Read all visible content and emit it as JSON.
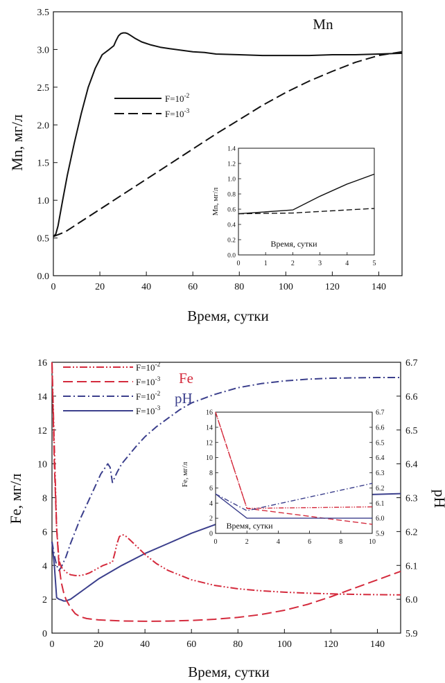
{
  "chart_data": [
    {
      "type": "line",
      "title": "Mn",
      "xlabel": "Время, сутки",
      "ylabel": "Mn, мг/л",
      "xlim": [
        0,
        150
      ],
      "ylim": [
        0,
        3.5
      ],
      "xticks": [
        0,
        20,
        40,
        60,
        80,
        100,
        120,
        140
      ],
      "yticks": [
        0.0,
        0.5,
        1.0,
        1.5,
        2.0,
        2.5,
        3.0,
        3.5
      ],
      "legend_position": "upper-left",
      "colors": {
        "line": "#111111"
      },
      "series": [
        {
          "name": "F=10⁻²",
          "style": "solid",
          "x": [
            0,
            1,
            2,
            4,
            6,
            9,
            12,
            15,
            18,
            21,
            24,
            26,
            27,
            28,
            29,
            30,
            31,
            32,
            33,
            35,
            38,
            42,
            46,
            50,
            55,
            60,
            65,
            70,
            80,
            90,
            100,
            110,
            120,
            130,
            140,
            150
          ],
          "y": [
            0.52,
            0.55,
            0.66,
            1.0,
            1.33,
            1.76,
            2.15,
            2.5,
            2.75,
            2.93,
            3.0,
            3.05,
            3.12,
            3.18,
            3.21,
            3.22,
            3.22,
            3.21,
            3.19,
            3.15,
            3.1,
            3.06,
            3.03,
            3.01,
            2.99,
            2.97,
            2.96,
            2.94,
            2.93,
            2.92,
            2.92,
            2.92,
            2.93,
            2.93,
            2.94,
            2.95
          ]
        },
        {
          "name": "F=10⁻³",
          "style": "dashed",
          "x": [
            0,
            5,
            10,
            20,
            30,
            40,
            50,
            60,
            70,
            80,
            90,
            100,
            110,
            120,
            130,
            140,
            150
          ],
          "y": [
            0.52,
            0.58,
            0.68,
            0.88,
            1.08,
            1.28,
            1.48,
            1.68,
            1.88,
            2.07,
            2.26,
            2.43,
            2.58,
            2.71,
            2.83,
            2.92,
            2.97
          ]
        }
      ],
      "inset": {
        "xlabel": "Время, сутки",
        "ylabel": "Mn, мг/л",
        "xlim": [
          0,
          5
        ],
        "ylim": [
          0,
          1.4
        ],
        "xticks": [
          0,
          1,
          2,
          3,
          4,
          5
        ],
        "yticks": [
          0.0,
          0.2,
          0.4,
          0.6,
          0.8,
          1.0,
          1.2,
          1.4
        ],
        "series": [
          {
            "style": "solid",
            "x": [
              0,
              2,
              3,
              4,
              5
            ],
            "y": [
              0.54,
              0.59,
              0.77,
              0.93,
              1.06
            ]
          },
          {
            "style": "dashed",
            "x": [
              0,
              2,
              3,
              4,
              5
            ],
            "y": [
              0.54,
              0.55,
              0.57,
              0.59,
              0.61
            ]
          }
        ]
      }
    },
    {
      "type": "line",
      "title": "",
      "xlabel": "Время, сутки",
      "ylabel": "Fe, мг/л",
      "ylabel_right": "pH",
      "xlim": [
        0,
        150
      ],
      "ylim": [
        0,
        16
      ],
      "ylim_right": [
        5.9,
        6.7
      ],
      "xticks": [
        0,
        20,
        40,
        60,
        80,
        100,
        120,
        140
      ],
      "yticks": [
        0,
        2,
        4,
        6,
        8,
        10,
        12,
        14,
        16
      ],
      "yticks_right": [
        5.9,
        6.0,
        6.1,
        6.2,
        6.3,
        6.4,
        6.5,
        6.6,
        6.7
      ],
      "group_labels": {
        "fe": "Fe",
        "ph": "pH"
      },
      "legend_position": "upper-left",
      "colors": {
        "fe": "#d42a3c",
        "ph": "#3b3f8c",
        "axis": "#111111"
      },
      "series": [
        {
          "name": "F=10⁻²",
          "group": "fe",
          "axis": "left",
          "style": "dashdotdot",
          "x": [
            0,
            1,
            2,
            3,
            4,
            6,
            8,
            10,
            12,
            14,
            16,
            18,
            20,
            22,
            24,
            26,
            27,
            28,
            29,
            30,
            31,
            32,
            34,
            37,
            40,
            45,
            50,
            60,
            70,
            80,
            90,
            100,
            110,
            120,
            130,
            140,
            150
          ],
          "y": [
            16,
            11,
            6.2,
            4.3,
            3.9,
            3.6,
            3.45,
            3.4,
            3.4,
            3.45,
            3.55,
            3.7,
            3.85,
            4.0,
            4.1,
            4.2,
            4.7,
            5.3,
            5.7,
            5.8,
            5.8,
            5.7,
            5.45,
            5.05,
            4.65,
            4.1,
            3.7,
            3.15,
            2.82,
            2.62,
            2.5,
            2.42,
            2.36,
            2.32,
            2.29,
            2.27,
            2.26
          ]
        },
        {
          "name": "F=10⁻³",
          "group": "fe",
          "axis": "left",
          "style": "dashed",
          "x": [
            0,
            1,
            2,
            3,
            4,
            5,
            6,
            8,
            10,
            12,
            15,
            20,
            30,
            40,
            50,
            60,
            70,
            80,
            90,
            100,
            110,
            120,
            130,
            140,
            150
          ],
          "y": [
            16,
            10,
            6.2,
            4.0,
            3.0,
            2.4,
            2.0,
            1.5,
            1.15,
            0.98,
            0.86,
            0.78,
            0.72,
            0.7,
            0.71,
            0.75,
            0.82,
            0.93,
            1.1,
            1.35,
            1.7,
            2.15,
            2.65,
            3.15,
            3.65
          ]
        },
        {
          "name": "F=10⁻²",
          "group": "ph",
          "axis": "right",
          "style": "dashdot",
          "x": [
            0,
            1,
            2,
            3,
            4,
            6,
            8,
            10,
            12,
            15,
            18,
            21,
            24,
            25,
            26,
            27,
            28,
            30,
            33,
            36,
            40,
            45,
            50,
            55,
            60,
            70,
            80,
            90,
            100,
            110,
            120,
            130,
            140,
            150
          ],
          "y": [
            6.17,
            6.13,
            6.1,
            6.085,
            6.095,
            6.125,
            6.165,
            6.2,
            6.235,
            6.28,
            6.325,
            6.37,
            6.4,
            6.39,
            6.345,
            6.36,
            6.375,
            6.4,
            6.425,
            6.45,
            6.48,
            6.51,
            6.535,
            6.56,
            6.58,
            6.605,
            6.625,
            6.637,
            6.645,
            6.65,
            6.653,
            6.654,
            6.655,
            6.655
          ]
        },
        {
          "name": "F=10⁻³",
          "group": "ph",
          "axis": "right",
          "style": "solid",
          "x": [
            0,
            1,
            2,
            3,
            4,
            5,
            6,
            8,
            10,
            15,
            20,
            30,
            40,
            50,
            60,
            70,
            80,
            90,
            100,
            110,
            120,
            130,
            140,
            150
          ],
          "y": [
            6.17,
            6.1,
            6.005,
            6.0,
            5.998,
            5.995,
            5.995,
            6.0,
            6.01,
            6.035,
            6.06,
            6.1,
            6.135,
            6.165,
            6.195,
            6.22,
            6.245,
            6.27,
            6.29,
            6.3,
            6.305,
            6.308,
            6.31,
            6.312
          ]
        }
      ],
      "inset": {
        "xlabel": "Время, сутки",
        "ylabel": "Fe, мг/л",
        "xlim": [
          0,
          10
        ],
        "ylim": [
          0,
          16
        ],
        "ylim_right": [
          5.9,
          6.7
        ],
        "xticks": [
          0,
          2,
          4,
          6,
          8,
          10
        ],
        "yticks": [
          0,
          2,
          4,
          6,
          8,
          10,
          12,
          14,
          16
        ],
        "yticks_right": [
          5.9,
          6.0,
          6.1,
          6.2,
          6.3,
          6.4,
          6.5,
          6.6,
          6.7
        ],
        "series": [
          {
            "group": "fe",
            "axis": "left",
            "style": "dashdotdot",
            "x": [
              0,
              2,
              10
            ],
            "y": [
              16,
              3.3,
              3.5
            ]
          },
          {
            "group": "fe",
            "axis": "left",
            "style": "dashed",
            "x": [
              0,
              2,
              10
            ],
            "y": [
              16,
              3.3,
              1.2
            ]
          },
          {
            "group": "ph",
            "axis": "right",
            "style": "dashdot",
            "x": [
              0,
              2,
              10
            ],
            "y": [
              6.16,
              6.05,
              6.23
            ]
          },
          {
            "group": "ph",
            "axis": "right",
            "style": "solid",
            "x": [
              0,
              2,
              10
            ],
            "y": [
              6.16,
              6.0,
              6.0
            ]
          }
        ]
      }
    }
  ]
}
